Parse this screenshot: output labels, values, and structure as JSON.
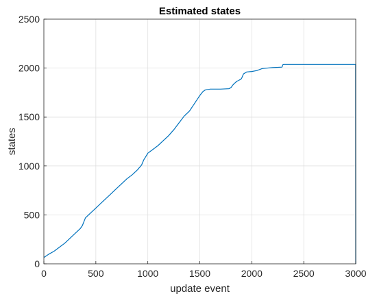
{
  "chart_data": {
    "type": "line",
    "title": "Estimated states",
    "xlabel": "update event",
    "ylabel": "states",
    "xlim": [
      0,
      3000
    ],
    "ylim": [
      0,
      2500
    ],
    "xticks": [
      0,
      500,
      1000,
      1500,
      2000,
      2500,
      3000
    ],
    "yticks": [
      0,
      500,
      1000,
      1500,
      2000,
      2500
    ],
    "grid": true,
    "line_color": "#0072BD",
    "series": [
      {
        "x": [
          0,
          50,
          100,
          150,
          200,
          250,
          300,
          350,
          370,
          400,
          450,
          500,
          550,
          600,
          650,
          700,
          750,
          800,
          850,
          900,
          940,
          960,
          1000,
          1050,
          1100,
          1150,
          1200,
          1250,
          1300,
          1350,
          1400,
          1450,
          1500,
          1530,
          1550,
          1600,
          1700,
          1780,
          1800,
          1820,
          1850,
          1900,
          1920,
          1950,
          2000,
          2050,
          2100,
          2200,
          2290,
          2300,
          2310,
          2400,
          2500,
          2600,
          2700,
          2800,
          2900,
          2999,
          3000
        ],
        "y": [
          65,
          100,
          130,
          170,
          210,
          260,
          310,
          360,
          390,
          470,
          520,
          570,
          620,
          670,
          720,
          770,
          820,
          870,
          910,
          960,
          1010,
          1060,
          1130,
          1170,
          1210,
          1260,
          1310,
          1370,
          1440,
          1510,
          1560,
          1640,
          1720,
          1760,
          1775,
          1785,
          1785,
          1790,
          1800,
          1830,
          1860,
          1890,
          1940,
          1960,
          1965,
          1975,
          1995,
          2005,
          2010,
          2035,
          2037,
          2037,
          2037,
          2037,
          2037,
          2037,
          2037,
          2037,
          0
        ]
      }
    ]
  }
}
